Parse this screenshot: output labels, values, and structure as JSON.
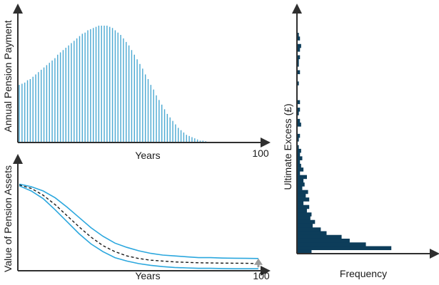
{
  "colors": {
    "bars": "#4aa8d2",
    "bounds": "#2ba7de",
    "median": "#1a1a1a",
    "histogram": "#0d3d5a",
    "axis": "#2f2f2f",
    "arrow": "#9a9a9a"
  },
  "chart_data": [
    {
      "type": "bar",
      "panel": "top-left",
      "title": "",
      "xlabel": "Years",
      "ylabel": "Annual Pension Payment",
      "x_tick_labels": [
        "100"
      ],
      "note": "values are relative (no y-axis scale shown)",
      "values": [
        0.49,
        0.5,
        0.51,
        0.53,
        0.54,
        0.56,
        0.58,
        0.6,
        0.62,
        0.64,
        0.66,
        0.68,
        0.7,
        0.72,
        0.75,
        0.77,
        0.79,
        0.81,
        0.83,
        0.85,
        0.87,
        0.89,
        0.91,
        0.93,
        0.94,
        0.96,
        0.97,
        0.98,
        0.99,
        1.0,
        1.0,
        1.0,
        1.0,
        0.99,
        0.98,
        0.96,
        0.94,
        0.92,
        0.89,
        0.86,
        0.83,
        0.79,
        0.75,
        0.71,
        0.67,
        0.63,
        0.58,
        0.54,
        0.49,
        0.45,
        0.4,
        0.36,
        0.32,
        0.28,
        0.24,
        0.21,
        0.18,
        0.15,
        0.12,
        0.1,
        0.08,
        0.06,
        0.05,
        0.04,
        0.03,
        0.02,
        0.01,
        0.01,
        0.005,
        0.0
      ]
    },
    {
      "type": "line",
      "panel": "bottom-left",
      "title": "",
      "xlabel": "Years",
      "ylabel": "Value of Pension Assets",
      "x_tick_labels": [
        "100"
      ],
      "x": [
        0,
        5,
        10,
        15,
        20,
        25,
        30,
        35,
        40,
        45,
        50,
        55,
        60,
        65,
        70,
        75,
        80,
        85,
        90,
        95,
        100
      ],
      "series": [
        {
          "role": "upper",
          "style": "solid",
          "values": [
            0.98,
            0.95,
            0.9,
            0.82,
            0.71,
            0.59,
            0.47,
            0.37,
            0.29,
            0.24,
            0.2,
            0.17,
            0.15,
            0.14,
            0.13,
            0.12,
            0.12,
            0.115,
            0.113,
            0.112,
            0.11
          ]
        },
        {
          "role": "median",
          "style": "dashed",
          "values": [
            0.97,
            0.93,
            0.85,
            0.74,
            0.61,
            0.48,
            0.36,
            0.26,
            0.19,
            0.14,
            0.11,
            0.09,
            0.08,
            0.07,
            0.065,
            0.06,
            0.058,
            0.056,
            0.055,
            0.054,
            0.05
          ]
        },
        {
          "role": "lower",
          "style": "solid",
          "values": [
            0.96,
            0.9,
            0.81,
            0.68,
            0.54,
            0.4,
            0.28,
            0.19,
            0.12,
            0.08,
            0.05,
            0.03,
            0.015,
            0.005,
            0.0,
            -0.005,
            -0.005,
            -0.008,
            -0.01,
            -0.01,
            -0.01
          ]
        }
      ],
      "annotation": "upward arrow at year 100"
    },
    {
      "type": "bar",
      "orientation": "horizontal",
      "panel": "right",
      "title": "",
      "xlabel": "Frequency",
      "ylabel": "Ultimate Excess (£)",
      "note": "bins ordered from top to bottom; relative frequencies",
      "values": [
        0.01,
        0.02,
        0.0,
        0.03,
        0.02,
        0.0,
        0.02,
        0.01,
        0.01,
        0.0,
        0.02,
        0.0,
        0.0,
        0.01,
        0.0,
        0.0,
        0.0,
        0.0,
        0.02,
        0.0,
        0.02,
        0.01,
        0.0,
        0.02,
        0.03,
        0.0,
        0.0,
        0.02,
        0.01,
        0.0,
        0.01,
        0.03,
        0.02,
        0.04,
        0.02,
        0.03,
        0.05,
        0.02,
        0.08,
        0.05,
        0.06,
        0.04,
        0.09,
        0.07,
        0.1,
        0.05,
        0.1,
        0.08,
        0.12,
        0.11,
        0.15,
        0.13,
        0.2,
        0.25,
        0.38,
        0.45,
        0.59,
        0.81,
        0.12
      ]
    }
  ]
}
